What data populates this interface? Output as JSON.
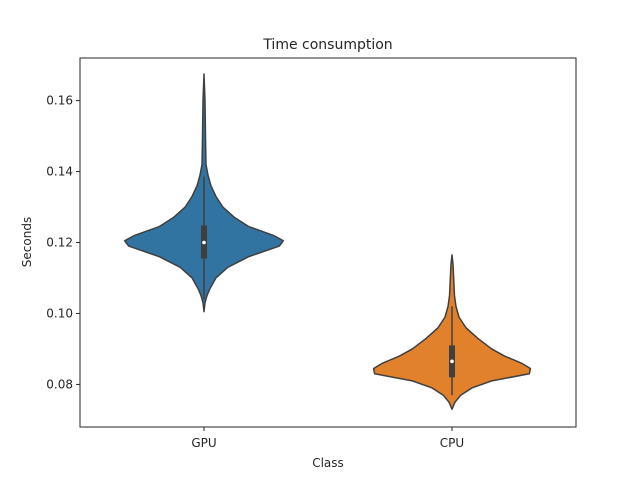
{
  "chart_data": {
    "type": "violin",
    "title": "Time consumption",
    "xlabel": "Class",
    "ylabel": "Seconds",
    "categories": [
      "GPU",
      "CPU"
    ],
    "ylim": [
      0.068,
      0.172
    ],
    "yticks": [
      "0.08",
      "0.10",
      "0.12",
      "0.14",
      "0.16"
    ],
    "grid": false,
    "legend": "none",
    "series": [
      {
        "category": "GPU",
        "color": "#3274a1",
        "min": 0.1005,
        "max": 0.1675,
        "q1": 0.1155,
        "median": 0.12,
        "q3": 0.1248,
        "whisker_low": 0.104,
        "whisker_high": 0.1385,
        "profile": [
          [
            0.1005,
            0.0
          ],
          [
            0.103,
            0.01
          ],
          [
            0.105,
            0.03
          ],
          [
            0.107,
            0.06
          ],
          [
            0.11,
            0.12
          ],
          [
            0.113,
            0.24
          ],
          [
            0.116,
            0.45
          ],
          [
            0.119,
            0.76
          ],
          [
            0.1205,
            0.8
          ],
          [
            0.122,
            0.7
          ],
          [
            0.1245,
            0.45
          ],
          [
            0.127,
            0.31
          ],
          [
            0.13,
            0.19
          ],
          [
            0.133,
            0.12
          ],
          [
            0.136,
            0.07
          ],
          [
            0.139,
            0.04
          ],
          [
            0.142,
            0.02
          ],
          [
            0.15,
            0.015
          ],
          [
            0.16,
            0.01
          ],
          [
            0.1675,
            0.0
          ]
        ]
      },
      {
        "category": "CPU",
        "color": "#e1812c",
        "min": 0.073,
        "max": 0.1165,
        "q1": 0.082,
        "median": 0.0865,
        "q3": 0.091,
        "whisker_low": 0.077,
        "whisker_high": 0.102,
        "profile": [
          [
            0.073,
            0.0
          ],
          [
            0.075,
            0.03
          ],
          [
            0.077,
            0.09
          ],
          [
            0.079,
            0.2
          ],
          [
            0.081,
            0.4
          ],
          [
            0.083,
            0.78
          ],
          [
            0.0845,
            0.79
          ],
          [
            0.086,
            0.7
          ],
          [
            0.088,
            0.53
          ],
          [
            0.09,
            0.4
          ],
          [
            0.093,
            0.26
          ],
          [
            0.096,
            0.14
          ],
          [
            0.099,
            0.07
          ],
          [
            0.102,
            0.04
          ],
          [
            0.105,
            0.025
          ],
          [
            0.108,
            0.02
          ],
          [
            0.111,
            0.015
          ],
          [
            0.114,
            0.01
          ],
          [
            0.1165,
            0.0
          ]
        ]
      }
    ]
  }
}
